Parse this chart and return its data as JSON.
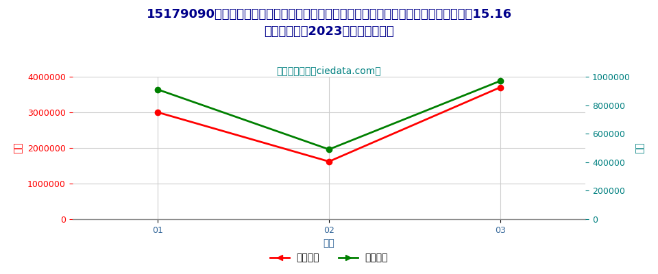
{
  "title_line1": "15179090其他本章动植物或微生物油、脂及其分离品混合制成的食用油、脂或制品（品目15.16",
  "title_line2": "的产品除外）2023年出口月度走势",
  "watermark": "进出口服务网（ciedata.com）",
  "months": [
    "01",
    "02",
    "03"
  ],
  "export_usd": [
    3000000,
    1620000,
    3700000
  ],
  "export_qty": [
    910000,
    490000,
    970000
  ],
  "left_ylim": [
    0,
    4000000
  ],
  "right_ylim": [
    0,
    1000000
  ],
  "left_yticks": [
    0,
    1000000,
    2000000,
    3000000,
    4000000
  ],
  "right_yticks": [
    0,
    200000,
    400000,
    600000,
    800000,
    1000000
  ],
  "xlabel": "月度",
  "left_ylabel": "金额",
  "right_ylabel": "数量",
  "legend_usd": "出口美元",
  "legend_qty": "出口数量",
  "line_color_usd": "#FF0000",
  "line_color_qty": "#008000",
  "title_color": "#00008B",
  "watermark_color": "#008080",
  "axis_label_color_left": "#FF0000",
  "axis_label_color_right": "#008080",
  "tick_color_left": "#FF0000",
  "tick_color_right": "#008080",
  "tick_color_x": "#336699",
  "background_color": "#FFFFFF",
  "grid_color": "#CCCCCC",
  "xlabel_color": "#336699",
  "title_fontsize": 13,
  "watermark_fontsize": 10,
  "axis_label_fontsize": 10,
  "tick_fontsize": 9,
  "legend_fontsize": 10
}
